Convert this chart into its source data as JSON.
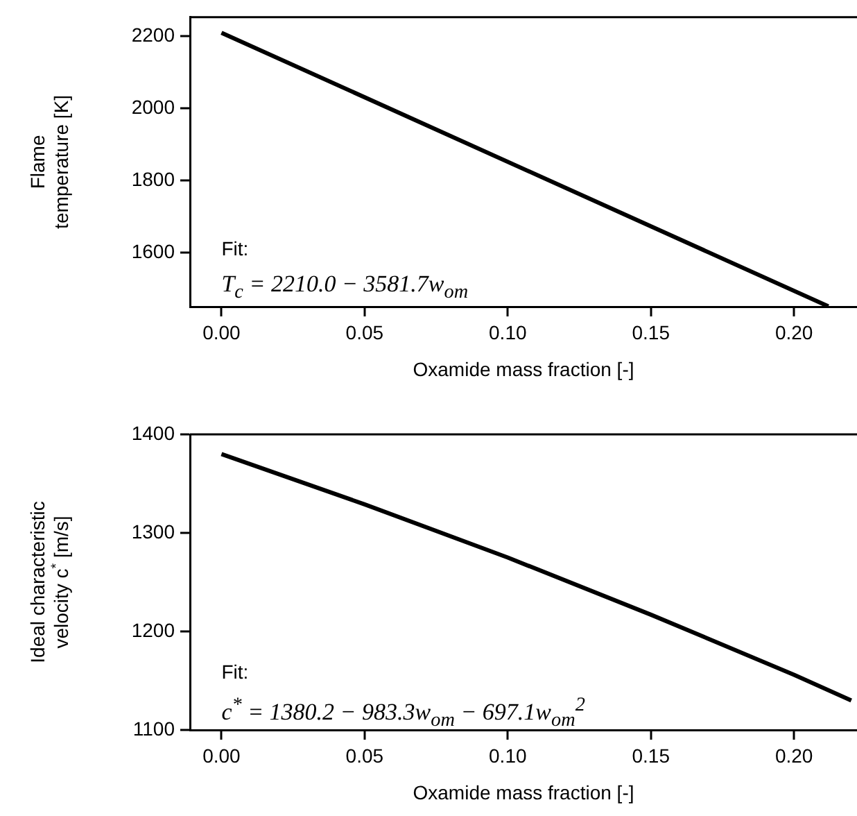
{
  "chart_data": [
    {
      "type": "line",
      "xlabel": "Oxamide mass fraction [-]",
      "ylabel": "Flame temperature [K]",
      "series": [
        {
          "color": "#000000",
          "x": [
            0,
            0.212
          ],
          "values": [
            2210,
            1451
          ]
        }
      ],
      "xlim": [
        -0.011,
        0.222
      ],
      "ylim": [
        1450,
        2253
      ],
      "xticks": [
        {
          "value": 0,
          "label": "0.00"
        },
        {
          "value": 0.05,
          "label": "0.05"
        },
        {
          "value": 0.1,
          "label": "0.10"
        },
        {
          "value": 0.15,
          "label": "0.15"
        },
        {
          "value": 0.2,
          "label": "0.20"
        }
      ],
      "yticks": [
        1600,
        1800,
        2000,
        2200
      ],
      "grid": false,
      "legend": false,
      "marker": "none",
      "line_style": "solid",
      "annotations": [
        "Fit:",
        "T$_{c}$ = 2210.0 − 3581.7w$_{om}$"
      ]
    },
    {
      "type": "line",
      "xlabel": "Oxamide mass fraction [-]",
      "ylabel": "Ideal characteristic velocity c$^{*}$ [m/s]",
      "series": [
        {
          "color": "#000000",
          "x": [
            0,
            0.05,
            0.1,
            0.15,
            0.2,
            0.22
          ],
          "values": [
            1380,
            1329,
            1275,
            1217,
            1156,
            1130
          ]
        }
      ],
      "xlim": [
        -0.011,
        0.222
      ],
      "ylim": [
        1100,
        1400
      ],
      "xticks": [
        {
          "value": 0,
          "label": "0.00"
        },
        {
          "value": 0.05,
          "label": "0.05"
        },
        {
          "value": 0.1,
          "label": "0.10"
        },
        {
          "value": 0.15,
          "label": "0.15"
        },
        {
          "value": 0.2,
          "label": "0.20"
        }
      ],
      "yticks": [
        1100,
        1200,
        1300,
        1400
      ],
      "grid": false,
      "legend": false,
      "marker": "none",
      "line_style": "solid",
      "annotations": [
        "Fit:",
        "c$^{*}$ = 1380.2 − 983.3w$_{om}$ − 697.1w$_{om}$$^{2}$"
      ]
    }
  ]
}
